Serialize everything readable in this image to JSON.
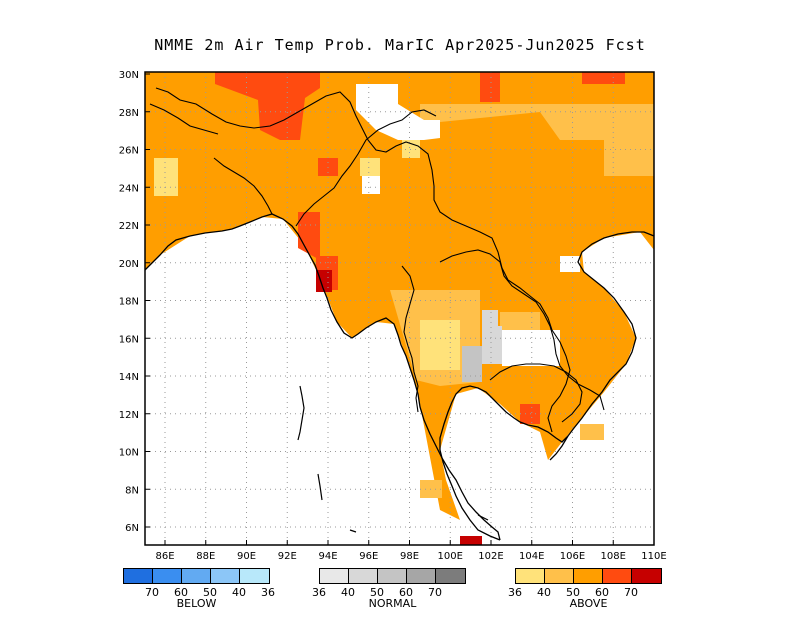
{
  "title": "NMME 2m Air Temp Prob. MarIC  Apr2025-Jun2025 Fcst",
  "axes": {
    "x_ticks": [
      "86E",
      "88E",
      "90E",
      "92E",
      "94E",
      "96E",
      "98E",
      "100E",
      "102E",
      "104E",
      "106E",
      "108E",
      "110E"
    ],
    "y_ticks": [
      "30N",
      "28N",
      "26N",
      "24N",
      "22N",
      "20N",
      "18N",
      "16N",
      "14N",
      "12N",
      "10N",
      "8N",
      "6N"
    ]
  },
  "legend": {
    "below": {
      "name": "BELOW",
      "colors": [
        "#1f6fe0",
        "#3a8ef0",
        "#62aaf2",
        "#8cc6f7",
        "#b8e8fa"
      ],
      "labels": [
        "70",
        "60",
        "50",
        "40",
        "36"
      ]
    },
    "normal": {
      "name": "NORMAL",
      "colors": [
        "#e8e8e8",
        "#d8d8d8",
        "#c4c4c4",
        "#a6a6a6",
        "#7c7c7c"
      ],
      "labels": [
        "36",
        "40",
        "50",
        "60",
        "70"
      ]
    },
    "above": {
      "name": "ABOVE",
      "colors": [
        "#ffe27a",
        "#ffc04a",
        "#ff9e00",
        "#ff4b10",
        "#c60000"
      ],
      "labels": [
        "36",
        "40",
        "50",
        "60",
        "70"
      ]
    }
  }
}
